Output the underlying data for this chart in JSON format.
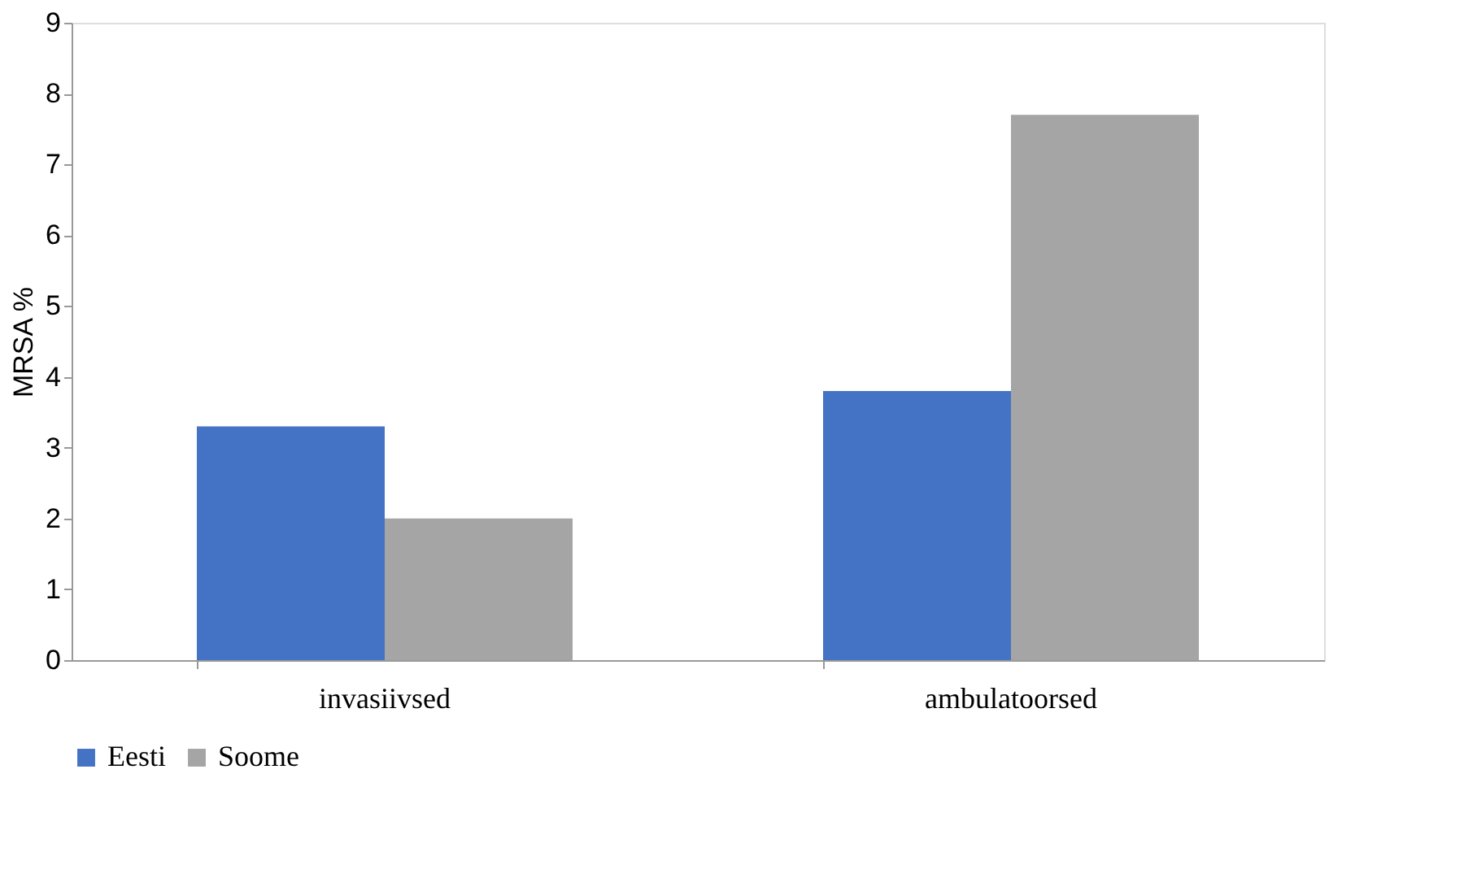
{
  "chart_data": {
    "type": "bar",
    "ylabel": "MRSA %",
    "categories": [
      "invasiivsed",
      "ambulatoorsed"
    ],
    "series": [
      {
        "name": "Eesti",
        "color": "#4472c4",
        "values": [
          3.3,
          3.8
        ]
      },
      {
        "name": "Soome",
        "color": "#a5a5a5",
        "values": [
          2.0,
          7.7
        ]
      }
    ],
    "ylim": [
      0,
      9
    ],
    "yticks": [
      0,
      1,
      2,
      3,
      4,
      5,
      6,
      7,
      8,
      9
    ],
    "grid": false,
    "legend": "bottom"
  }
}
